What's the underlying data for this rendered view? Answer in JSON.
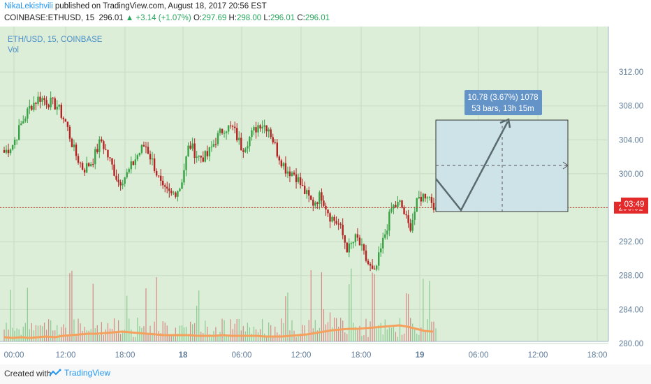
{
  "header": {
    "author": "NikaLekishvili",
    "published": "published on TradingView.com, August 18, 2017 20:56 EST",
    "symbol": "COINBASE:ETHUSD, 15",
    "last": "296.01",
    "change": "▲ +3.14 (+1.07%)",
    "o_label": "O:",
    "o_value": "297.69",
    "h_label": "H:",
    "h_value": "298.00",
    "l_label": "L:",
    "l_value": "296.01",
    "c_label": "C:",
    "c_value": "296.01"
  },
  "legend": {
    "title": "ETH/USD, 15, COINBASE",
    "indicator": "Vol"
  },
  "projection": {
    "line1": "10.78 (3.67%) 1078",
    "line2": "53 bars, 13h 15m"
  },
  "price_label": "296.01",
  "countdown_label": "03:49",
  "footer": {
    "created_with": "Created with",
    "brand": "TradingView"
  },
  "colors": {
    "background": "#dcedd8",
    "up": "#38a345",
    "down": "#b52222",
    "vol_ma": "#f5a05c",
    "badge": "#e32929",
    "projection_box": "#cde3e8",
    "projection_label": "#6493c8"
  },
  "chart_data": {
    "type": "candlestick",
    "y_ticks": [
      "312.00",
      "308.00",
      "304.00",
      "300.00",
      "296.00",
      "292.00",
      "288.00",
      "284.00",
      "280.00"
    ],
    "x_ticks": [
      "00:00",
      "12:00",
      "18:00",
      "18",
      "06:00",
      "12:00",
      "18:00",
      "19",
      "06:00",
      "12:00",
      "18:00"
    ],
    "ylim": [
      278,
      315
    ],
    "current_price": 296.01,
    "price_path": [
      302.5,
      303.5,
      306,
      308,
      309,
      308.5,
      308,
      306,
      302.5,
      300.5,
      301.5,
      304,
      301.5,
      299,
      300,
      302,
      303.5,
      301,
      298,
      297.5,
      298.5,
      303.5,
      302,
      302,
      304,
      305.5,
      305.3,
      303,
      304.5,
      306,
      305.5,
      302.5,
      300.5,
      300,
      298,
      296.5,
      297.5,
      295,
      294,
      291,
      292.5,
      290,
      288,
      292,
      296,
      296.5,
      293.5,
      297,
      297.7,
      296
    ],
    "volume_ma": [
      6,
      5,
      6,
      5,
      6,
      7,
      6,
      8,
      9,
      10,
      11,
      11,
      12,
      13,
      14,
      13,
      12,
      11,
      10,
      9,
      9,
      9,
      9,
      8,
      8,
      8,
      9,
      8,
      8,
      8,
      8,
      7,
      7,
      7,
      8,
      9,
      10,
      12,
      14,
      16,
      17,
      18,
      18,
      19,
      20,
      21,
      22,
      23,
      21,
      18,
      15,
      14
    ]
  }
}
